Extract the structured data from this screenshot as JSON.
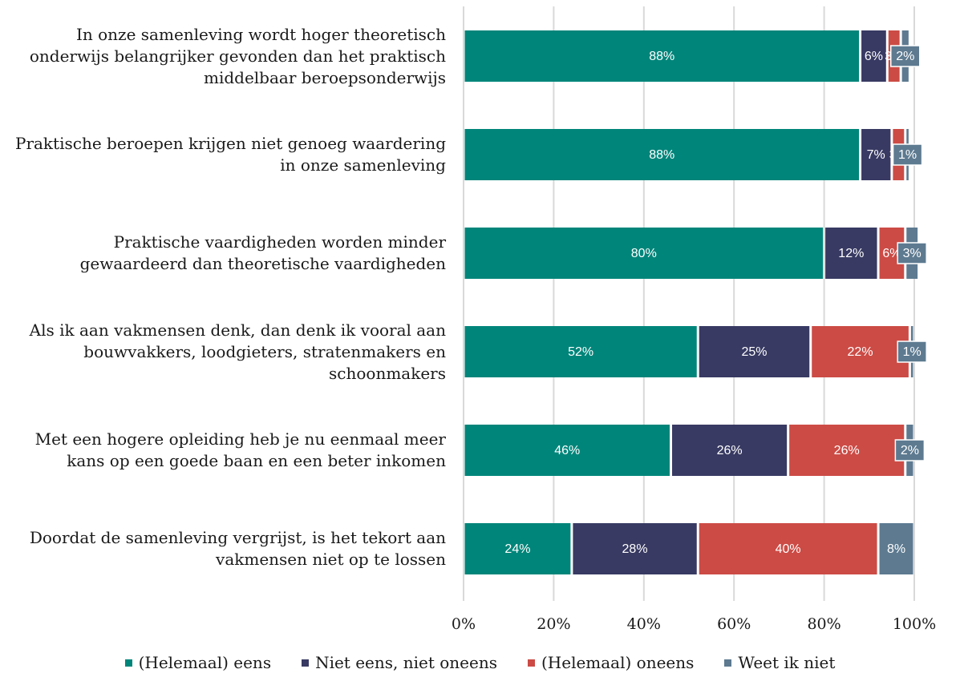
{
  "chart_data": {
    "type": "stacked-bar-horizontal",
    "categories": [
      "In onze samenleving wordt hoger theoretisch onderwijs belangrijker gevonden dan het praktisch middelbaar beroepsonderwijs",
      "Praktische beroepen krijgen niet genoeg waardering in onze samenleving",
      "Praktische vaardigheden worden minder gewaardeerd dan theoretische vaardigheden",
      "Als ik aan vakmensen denk, dan denk ik vooral aan bouwvakkers, loodgieters, stratenmakers en schoonmakers",
      "Met een hogere opleiding heb je nu eenmaal meer kans op een goede baan en een beter inkomen",
      "Doordat de samenleving vergrijst, is het tekort aan vakmensen niet op te lossen"
    ],
    "series": [
      {
        "name": "(Helemaal) eens",
        "color": "#00857a",
        "values": [
          88,
          88,
          80,
          52,
          46,
          24
        ],
        "value_labels": [
          "88%",
          "88%",
          "80%",
          "52%",
          "46%",
          "24%"
        ]
      },
      {
        "name": "Niet eens, niet oneens",
        "color": "#383a63",
        "values": [
          6,
          7,
          12,
          25,
          26,
          28
        ],
        "value_labels": [
          "6%",
          "7%",
          "12%",
          "25%",
          "26%",
          "28%"
        ]
      },
      {
        "name": "(Helemaal) oneens",
        "color": "#cc4b45",
        "values": [
          3,
          3,
          6,
          22,
          26,
          40
        ],
        "value_labels": [
          "3%",
          "3%",
          "6%",
          "22%",
          "26%",
          "40%"
        ]
      },
      {
        "name": "Weet ik niet",
        "color": "#5d7a90",
        "values": [
          2,
          1,
          3,
          1,
          2,
          8
        ],
        "value_labels": [
          "2%",
          "1%",
          "3%",
          "1%",
          "2%",
          "8%"
        ]
      }
    ],
    "xlim": [
      0,
      100
    ],
    "xticks": [
      {
        "value": 0,
        "label": "0%"
      },
      {
        "value": 20,
        "label": "20%"
      },
      {
        "value": 40,
        "label": "40%"
      },
      {
        "value": 60,
        "label": "60%"
      },
      {
        "value": 80,
        "label": "80%"
      },
      {
        "value": 100,
        "label": "100%"
      }
    ],
    "grid": true
  }
}
